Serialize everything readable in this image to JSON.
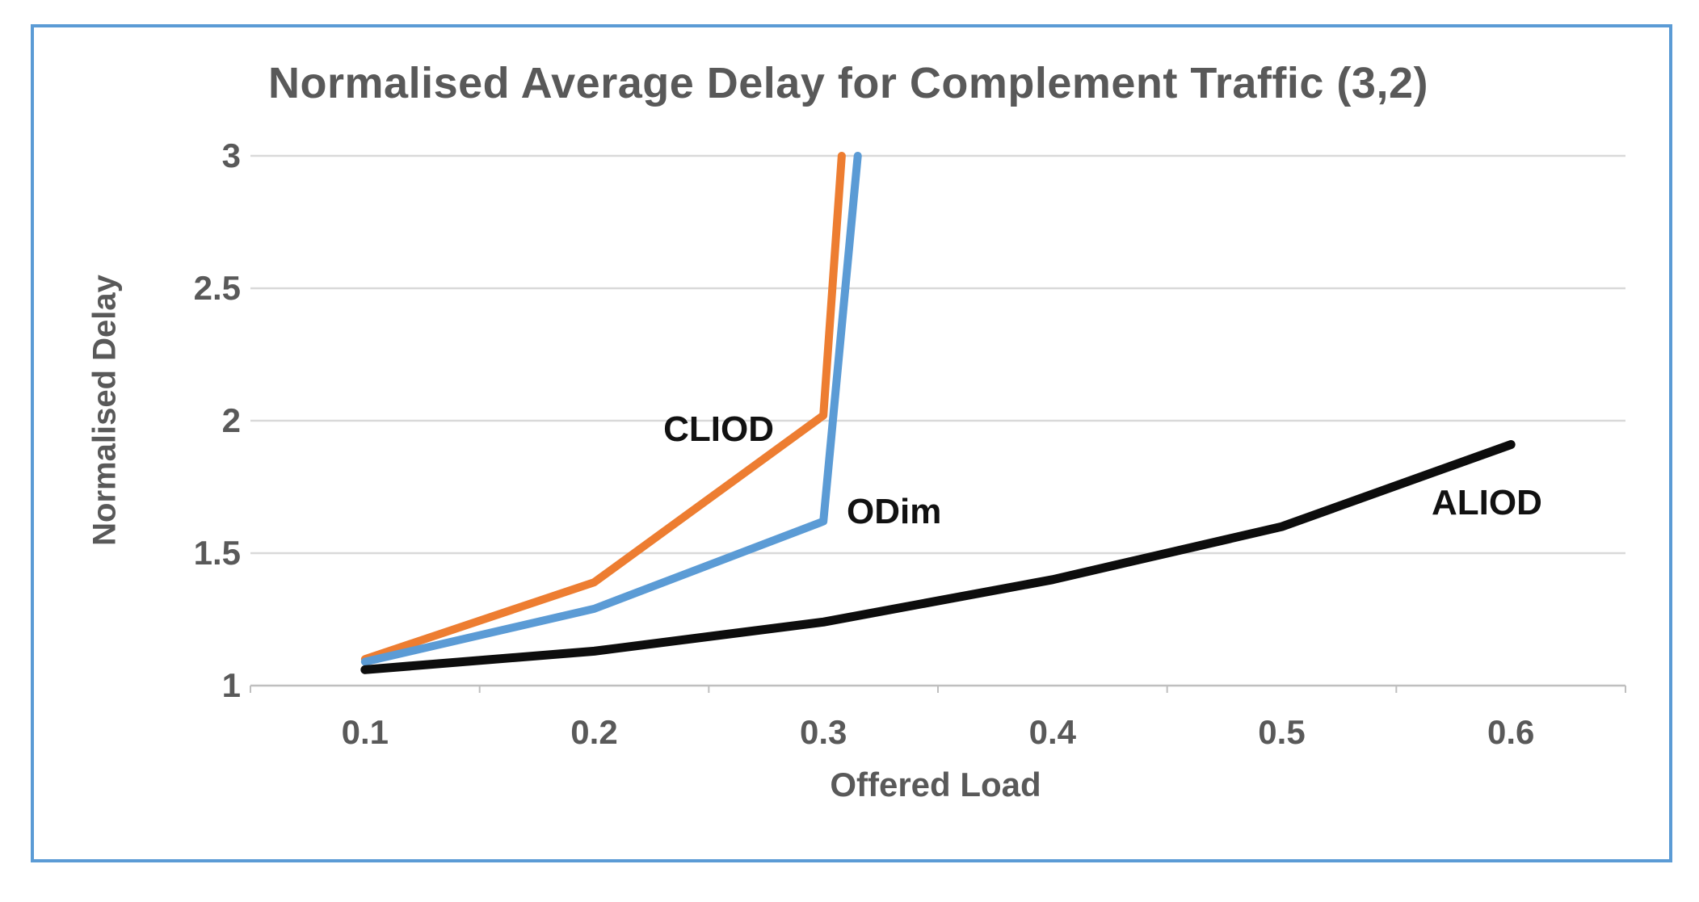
{
  "frame": {
    "border_color": "#5B9BD5",
    "background": "#ffffff"
  },
  "chart_data": {
    "type": "line",
    "title": "Normalised Average Delay for Complement Traffic (3,2)",
    "xlabel": "Offered Load",
    "ylabel": "Normalised Delay",
    "x_tick_labels": [
      "0.1",
      "0.2",
      "0.3",
      "0.4",
      "0.5",
      "0.6"
    ],
    "y_tick_labels": [
      "1",
      "1.5",
      "2",
      "2.5",
      "3"
    ],
    "y_tick_values": [
      1,
      1.5,
      2,
      2.5,
      3
    ],
    "xlim": [
      0.1,
      0.6
    ],
    "ylim": [
      1,
      3
    ],
    "grid": "horizontal",
    "legend_position": "inline-labels",
    "colors": {
      "gridline": "#D9D9D9",
      "axis_line": "#BFBFBF",
      "tick_text": "#595959",
      "title_text": "#595959",
      "series_label_text": "#111111"
    },
    "series": [
      {
        "name": "CLIOD",
        "color": "#ED7D31",
        "x": [
          0.1,
          0.2,
          0.3
        ],
        "values": [
          1.1,
          1.39,
          2.02
        ],
        "exit_top_at_x": 0.308,
        "note": "line climbs off the top of the plot just after x=0.3"
      },
      {
        "name": "ODim",
        "color": "#5B9BD5",
        "x": [
          0.1,
          0.2,
          0.3
        ],
        "values": [
          1.09,
          1.29,
          1.62
        ],
        "exit_top_at_x": 0.315,
        "note": "line climbs off the top of the plot just after x=0.3"
      },
      {
        "name": "ALIOD",
        "color": "#0d0d0d",
        "x": [
          0.1,
          0.2,
          0.3,
          0.4,
          0.5,
          0.6
        ],
        "values": [
          1.06,
          1.13,
          1.24,
          1.4,
          1.6,
          1.91
        ],
        "exit_top_at_x": null,
        "note": ""
      }
    ]
  }
}
